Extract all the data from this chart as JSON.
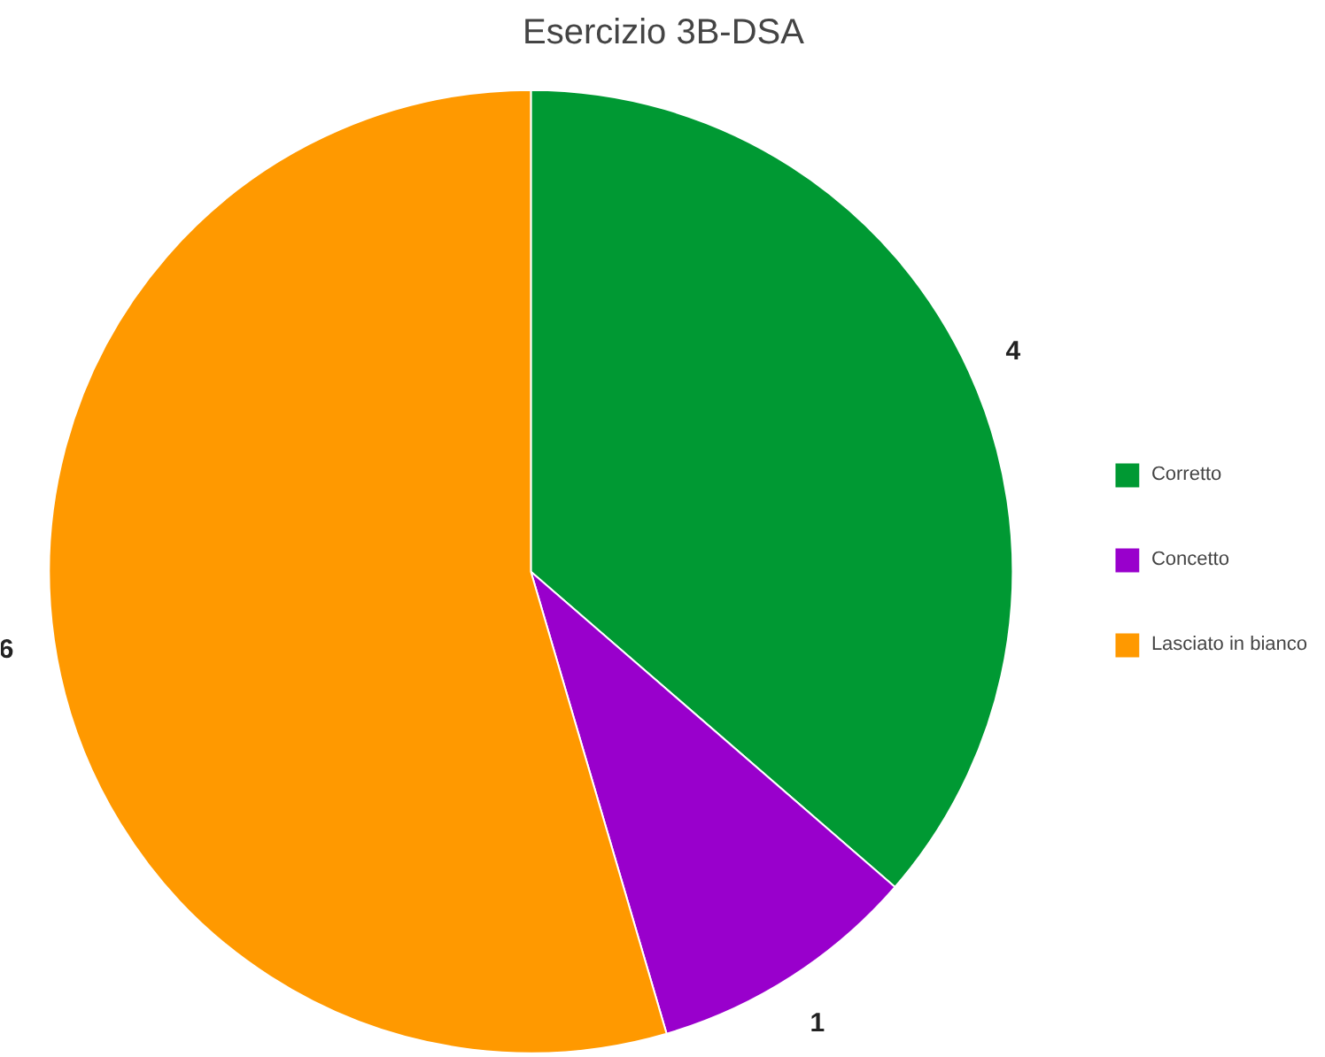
{
  "chart_data": {
    "type": "pie",
    "title": "Esercizio 3B-DSA",
    "categories": [
      "Corretto",
      "Concetto",
      "Lasciato in bianco"
    ],
    "values": [
      4,
      1,
      6
    ],
    "colors": [
      "#009933",
      "#9900cc",
      "#ff9900"
    ],
    "data_labels": true,
    "legend": "right"
  }
}
